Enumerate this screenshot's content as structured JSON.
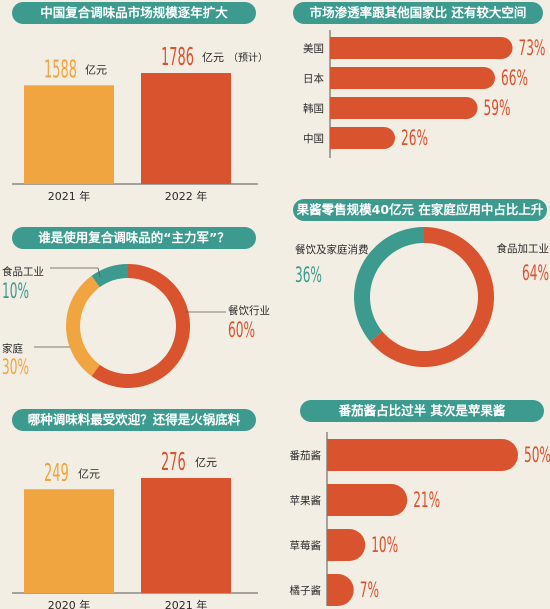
{
  "colors": {
    "orange": "#f0a540",
    "red": "#d9532f",
    "teal": "#3c9a8e",
    "text": "#2a2a2a"
  },
  "chart_data": [
    {
      "type": "bar",
      "title": "中国复合调味品市场规模逐年扩大",
      "categories": [
        "2021 年",
        "2022 年"
      ],
      "values": [
        1588,
        1786
      ],
      "value_labels": [
        "1588",
        "1786"
      ],
      "unit": "亿元",
      "annotations": [
        "",
        "（预计）"
      ]
    },
    {
      "type": "bar",
      "orientation": "horizontal",
      "title": "市场渗透率跟其他国家比 还有较大空间",
      "categories": [
        "美国",
        "日本",
        "韩国",
        "中国"
      ],
      "values": [
        73,
        66,
        59,
        26
      ],
      "value_labels": [
        "73%",
        "66%",
        "59%",
        "26%"
      ]
    },
    {
      "type": "pie",
      "title": "谁是使用复合调味品的“主力军”？",
      "labels": [
        "餐饮行业",
        "家庭",
        "食品工业"
      ],
      "values": [
        60,
        30,
        10
      ],
      "value_labels": [
        "60%",
        "30%",
        "10%"
      ]
    },
    {
      "type": "pie",
      "title": "果酱零售规模40亿元 在家庭应用中占比上升",
      "labels": [
        "食品加工业",
        "餐饮及家庭消费"
      ],
      "values": [
        64,
        36
      ],
      "value_labels": [
        "64%",
        "36%"
      ]
    },
    {
      "type": "bar",
      "title": "哪种调味料最受欢迎？还得是火锅底料",
      "categories": [
        "2020 年",
        "2021 年"
      ],
      "values": [
        249,
        276
      ],
      "value_labels": [
        "249",
        "276"
      ],
      "unit": "亿元"
    },
    {
      "type": "bar",
      "orientation": "horizontal",
      "title": "番茄酱占比过半 其次是苹果酱",
      "categories": [
        "番茄酱",
        "苹果酱",
        "草莓酱",
        "橘子酱"
      ],
      "values": [
        50,
        21,
        10,
        7
      ],
      "value_labels": [
        "50%",
        "21%",
        "10%",
        "7%"
      ]
    }
  ]
}
